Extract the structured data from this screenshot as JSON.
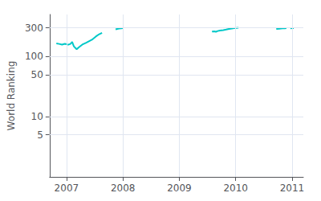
{
  "chart_data": {
    "type": "line",
    "ylabel": "World Ranking",
    "color": "#00c8c8",
    "log": "y",
    "grid": true,
    "series": [
      {
        "x": [
          2006.82,
          2006.87,
          2006.92,
          2006.97,
          2007.0,
          2007.03,
          2007.07,
          2007.1,
          2007.13,
          2007.18,
          2007.22,
          2007.28,
          2007.35,
          2007.45,
          2007.52,
          2007.58,
          2007.63
        ],
        "values": [
          165,
          162,
          158,
          163,
          160,
          157,
          162,
          175,
          148,
          132,
          143,
          158,
          170,
          190,
          215,
          235,
          248
        ]
      },
      {
        "x": [
          2007.87,
          2007.9,
          2007.93,
          2007.97,
          2008.0
        ],
        "values": [
          283,
          288,
          292,
          295,
          297
        ]
      },
      {
        "x": [
          2009.58,
          2009.62,
          2009.65,
          2009.68,
          2009.72,
          2009.78,
          2009.83,
          2009.88,
          2009.93,
          2009.97,
          2010.02,
          2010.05
        ],
        "values": [
          260,
          262,
          258,
          265,
          270,
          275,
          280,
          287,
          292,
          296,
          299,
          300
        ]
      },
      {
        "x": [
          2010.72,
          2010.77,
          2010.8,
          2010.83,
          2010.87,
          2010.9
        ],
        "values": [
          287,
          290,
          292,
          293,
          295,
          296
        ]
      },
      {
        "x": [
          2010.97,
          2011.0,
          2011.03
        ],
        "values": [
          294,
          296,
          297
        ]
      }
    ],
    "xlim": [
      2006.7,
      2011.2
    ],
    "ylim": [
      1,
      500
    ],
    "xticks": [
      2007,
      2008,
      2009,
      2010,
      2011
    ],
    "yticks": [
      5,
      10,
      50,
      100,
      300
    ]
  }
}
